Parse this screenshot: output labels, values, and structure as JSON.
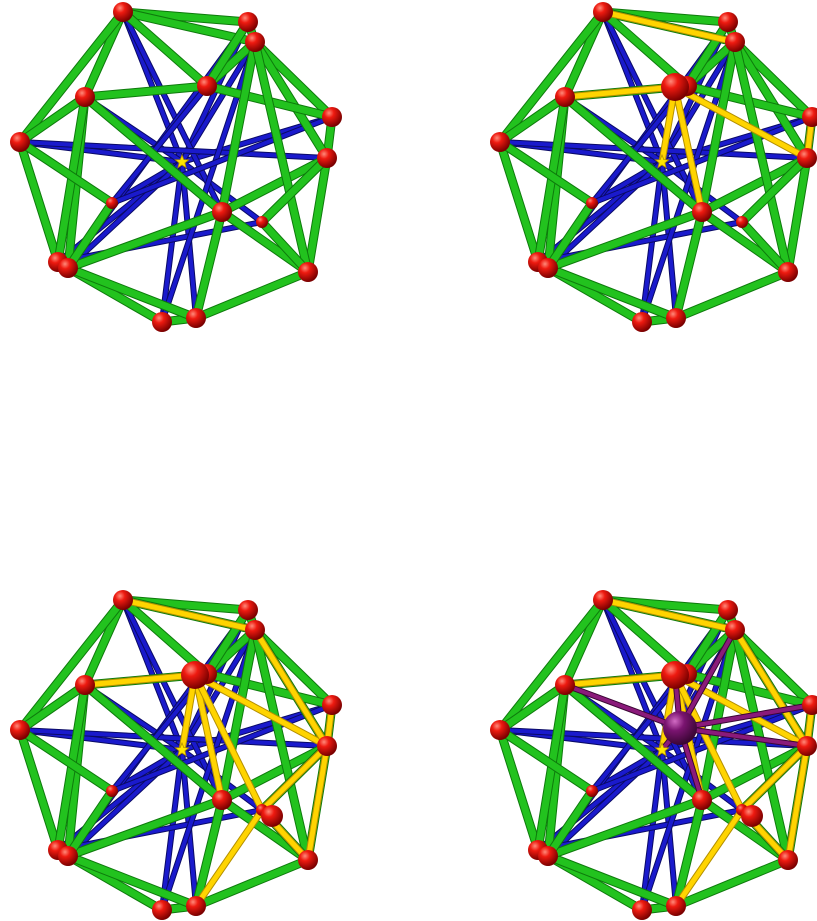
{
  "figure": {
    "panels": [
      {
        "position": "top-left",
        "stages": [
          "green",
          "blue"
        ]
      },
      {
        "position": "top-right",
        "stages": [
          "green",
          "blue",
          "yellow-partial"
        ]
      },
      {
        "position": "bottom-left",
        "stages": [
          "green",
          "blue",
          "yellow-full"
        ]
      },
      {
        "position": "bottom-right",
        "stages": [
          "green",
          "blue",
          "yellow-full",
          "purple"
        ]
      }
    ],
    "colors": {
      "outer_edge": "#22c21e",
      "outer_edge_dark": "#0e7a0c",
      "inner_edge": "#1a1acc",
      "inner_edge_dark": "#0a0a66",
      "highlight_edge": "#ffd400",
      "highlight_edge_dark": "#b38f00",
      "center_edge": "#8a1a7a",
      "vertex": "#e01010",
      "vertex_dark": "#7a0000",
      "center_vertex": "#ffe600",
      "hub_vertex": "#7a1470",
      "background": "#ffffff"
    },
    "icons": [
      "vertex-sphere-icon",
      "edge-tube-icon",
      "center-star-icon"
    ]
  }
}
